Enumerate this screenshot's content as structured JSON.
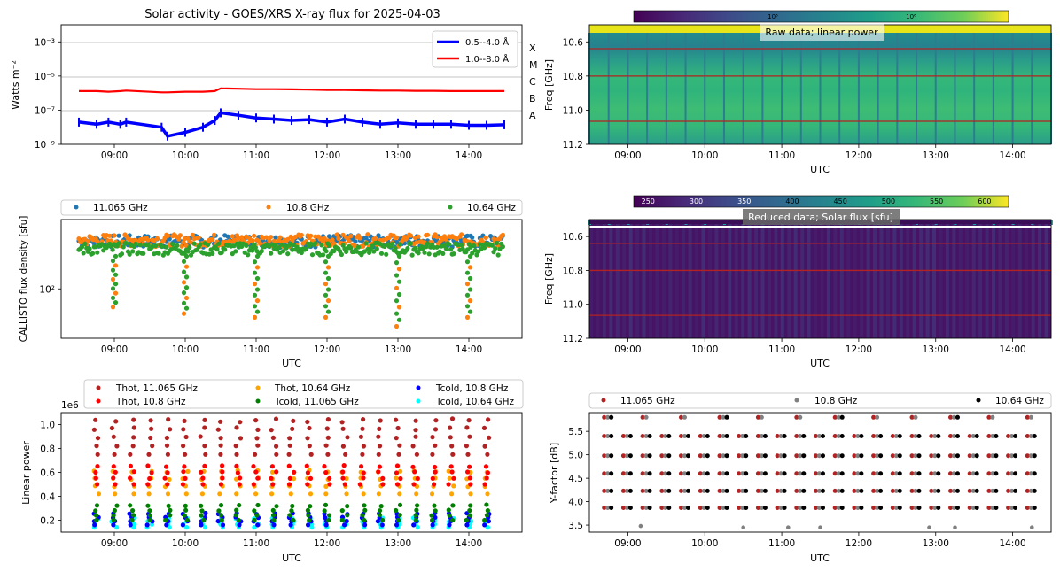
{
  "figure": {
    "title": "Solar activity - GOES/XRS X-ray flux for 2025-04-03"
  },
  "colors": {
    "blue": "#0000ff",
    "red": "#ff0000",
    "c_blue": "#1f77b4",
    "c_orange": "#ff7f0e",
    "c_green": "#2ca02c",
    "brown": "#b22222",
    "thot_red": "#ff0000",
    "orange": "#ffa500",
    "green": "#008000",
    "tcold_blue": "#0000ff",
    "cyan": "#00ffff",
    "gray": "#808080",
    "black": "#000000",
    "hline": "#b22222",
    "grid": "#b0b0b0"
  },
  "time_ticks": [
    "09:00",
    "10:00",
    "11:00",
    "12:00",
    "13:00",
    "14:00"
  ],
  "chart_data": [
    {
      "id": "goes",
      "type": "line",
      "title": "Solar activity - GOES/XRS X-ray flux for 2025-04-03",
      "ylabel": "Watts m⁻²",
      "xlim": [
        "08:15",
        "14:45"
      ],
      "ylog": true,
      "ylim": [
        1e-09,
        0.01
      ],
      "yticks": [
        "10⁻³",
        "10⁻⁵",
        "10⁻⁷",
        "10⁻⁹"
      ],
      "ytick_values": [
        0.001,
        1e-05,
        1e-07,
        1e-09
      ],
      "flare_classes": [
        "X",
        "M",
        "C",
        "B",
        "A"
      ],
      "grid_lines": [
        0.001,
        1e-05,
        1e-07
      ],
      "legend": [
        "0.5--4.0 Å",
        "1.0--8.0 Å"
      ],
      "series": [
        {
          "name": "0.5--4.0 Å",
          "color": "#0000ff",
          "x": [
            "08:30",
            "08:45",
            "08:55",
            "09:05",
            "09:10",
            "09:40",
            "09:45",
            "10:00",
            "10:15",
            "10:25",
            "10:30",
            "10:45",
            "11:00",
            "11:15",
            "11:30",
            "11:45",
            "12:00",
            "12:15",
            "12:30",
            "12:45",
            "13:00",
            "13:15",
            "13:30",
            "13:45",
            "14:00",
            "14:15",
            "14:30"
          ],
          "y": [
            2e-08,
            1.5e-08,
            2e-08,
            1.5e-08,
            2e-08,
            1e-08,
            3e-09,
            5e-09,
            1e-08,
            2.5e-08,
            7e-08,
            5e-08,
            3.5e-08,
            3e-08,
            2.5e-08,
            2.8e-08,
            2e-08,
            3e-08,
            2e-08,
            1.5e-08,
            1.8e-08,
            1.5e-08,
            1.5e-08,
            1.5e-08,
            1.3e-08,
            1.3e-08,
            1.4e-08
          ]
        },
        {
          "name": "1.0--8.0 Å",
          "color": "#ff0000",
          "x": [
            "08:30",
            "08:45",
            "08:55",
            "09:05",
            "09:10",
            "09:40",
            "09:45",
            "10:00",
            "10:15",
            "10:25",
            "10:30",
            "10:45",
            "11:00",
            "11:15",
            "11:30",
            "11:45",
            "12:00",
            "12:15",
            "12:30",
            "12:45",
            "13:00",
            "13:15",
            "13:30",
            "13:45",
            "14:00",
            "14:15",
            "14:30"
          ],
          "y": [
            1.3e-06,
            1.3e-06,
            1.2e-06,
            1.3e-06,
            1.4e-06,
            1.1e-06,
            1.1e-06,
            1.2e-06,
            1.2e-06,
            1.3e-06,
            1.9e-06,
            1.8e-06,
            1.7e-06,
            1.7e-06,
            1.65e-06,
            1.6e-06,
            1.5e-06,
            1.5e-06,
            1.45e-06,
            1.4e-06,
            1.4e-06,
            1.35e-06,
            1.35e-06,
            1.3e-06,
            1.3e-06,
            1.3e-06,
            1.3e-06
          ]
        }
      ]
    },
    {
      "id": "raw",
      "type": "heatmap",
      "title": "Raw data; linear power",
      "ylabel": "Freq [GHz]",
      "xlabel": "UTC",
      "xlim": [
        "08:30",
        "14:30"
      ],
      "yticks": [
        "10.6",
        "10.8",
        "11.0",
        "11.2"
      ],
      "ytick_values": [
        10.6,
        10.8,
        11.0,
        11.2
      ],
      "ylim": [
        10.5,
        11.2
      ],
      "colorbar_ticks": [
        "10⁵",
        "10⁶"
      ],
      "frequencies_marked": [
        10.64,
        10.8,
        11.065
      ],
      "colormap": "viridis"
    },
    {
      "id": "callisto",
      "type": "scatter",
      "ylabel": "CALLISTO flux density [sfu]",
      "xlabel": "UTC",
      "xlim": [
        "08:15",
        "14:45"
      ],
      "ylog": true,
      "ylim": [
        25,
        700
      ],
      "yticks": [
        "10²"
      ],
      "ytick_values": [
        100
      ],
      "legend": [
        "11.065 GHz",
        "10.8 GHz",
        "10.64 GHz"
      ],
      "series": [
        {
          "name": "11.065 GHz",
          "color": "#1f77b4",
          "x": [
            "08:30",
            "14:30"
          ],
          "y": [
            400,
            400
          ]
        },
        {
          "name": "10.8 GHz",
          "color": "#ff7f0e",
          "x": [
            "08:30",
            "14:30"
          ],
          "y": [
            380,
            380
          ]
        },
        {
          "name": "10.64 GHz",
          "color": "#2ca02c",
          "x": [
            "08:30",
            "14:30"
          ],
          "y": [
            300,
            300
          ]
        }
      ],
      "dips": [
        {
          "x": "09:00",
          "y_min": 60
        },
        {
          "x": "10:00",
          "y_min": 50
        },
        {
          "x": "11:00",
          "y_min": 45
        },
        {
          "x": "12:00",
          "y_min": 45
        },
        {
          "x": "13:00",
          "y_min": 35
        },
        {
          "x": "14:00",
          "y_min": 45
        }
      ]
    },
    {
      "id": "reduced",
      "type": "heatmap",
      "title": "Reduced data; Solar flux [sfu]",
      "ylabel": "Freq [GHz]",
      "xlabel": "UTC",
      "xlim": [
        "08:30",
        "14:30"
      ],
      "yticks": [
        "10.6",
        "10.8",
        "11.0",
        "11.2"
      ],
      "ytick_values": [
        10.6,
        10.8,
        11.0,
        11.2
      ],
      "ylim": [
        10.5,
        11.2
      ],
      "colorbar_ticks": [
        "250",
        "300",
        "350",
        "400",
        "450",
        "500",
        "550",
        "600"
      ],
      "colorbar_values": [
        250,
        300,
        350,
        400,
        450,
        500,
        550,
        600
      ],
      "colorbar_range": [
        235,
        625
      ],
      "frequencies_marked": [
        10.64,
        10.8,
        11.065
      ],
      "colormap": "viridis"
    },
    {
      "id": "linpower",
      "type": "scatter",
      "ylabel": "Linear power",
      "xlabel": "UTC",
      "offset_text": "1e6",
      "xlim": [
        "08:15",
        "14:45"
      ],
      "ylim": [
        0.1,
        1.1
      ],
      "yticks": [
        "0.2",
        "0.4",
        "0.6",
        "0.8",
        "1.0"
      ],
      "ytick_values": [
        0.2,
        0.4,
        0.6,
        0.8,
        1.0
      ],
      "legend": [
        "Thot, 11.065 GHz",
        "Thot, 10.8 GHz",
        "Thot, 10.64 GHz",
        "Tcold, 11.065 GHz",
        "Tcold, 10.8 GHz",
        "Tcold, 10.64 GHz"
      ],
      "series": [
        {
          "name": "Thot, 11.065 GHz",
          "color": "#b22222",
          "y_range": [
            0.75,
            1.05
          ]
        },
        {
          "name": "Thot, 10.8 GHz",
          "color": "#ff0000",
          "y_range": [
            0.5,
            0.66
          ]
        },
        {
          "name": "Thot, 10.64 GHz",
          "color": "#ffa500",
          "y_range": [
            0.42,
            0.62
          ]
        },
        {
          "name": "Tcold, 11.065 GHz",
          "color": "#008000",
          "y_range": [
            0.2,
            0.33
          ]
        },
        {
          "name": "Tcold, 10.8 GHz",
          "color": "#0000ff",
          "y_range": [
            0.16,
            0.26
          ]
        },
        {
          "name": "Tcold, 10.64 GHz",
          "color": "#00ffff",
          "y_range": [
            0.14,
            0.22
          ]
        }
      ],
      "calibration_times": [
        "08:45",
        "09:00",
        "09:15",
        "09:30",
        "09:45",
        "10:00",
        "10:15",
        "10:30",
        "10:45",
        "11:00",
        "11:15",
        "11:30",
        "11:45",
        "12:00",
        "12:15",
        "12:30",
        "12:45",
        "13:00",
        "13:15",
        "13:30",
        "13:45",
        "14:00",
        "14:15"
      ]
    },
    {
      "id": "yfactor",
      "type": "scatter",
      "ylabel": "Y-factor [dB]",
      "xlabel": "UTC",
      "xlim": [
        "08:30",
        "14:30"
      ],
      "ylim": [
        3.35,
        5.9
      ],
      "yticks": [
        "3.5",
        "4.0",
        "4.5",
        "5.0",
        "5.5"
      ],
      "ytick_values": [
        3.5,
        4.0,
        4.5,
        5.0,
        5.5
      ],
      "legend": [
        "11.065 GHz",
        "10.8 GHz",
        "10.64 GHz"
      ],
      "series": [
        {
          "name": "11.065 GHz",
          "color": "#b22222"
        },
        {
          "name": "10.8 GHz",
          "color": "#808080"
        },
        {
          "name": "10.64 GHz",
          "color": "#000000"
        }
      ],
      "levels": [
        3.87,
        4.23,
        4.6,
        4.98,
        5.4,
        5.8
      ],
      "calibration_times": [
        "08:45",
        "09:00",
        "09:15",
        "09:30",
        "09:45",
        "10:00",
        "10:15",
        "10:30",
        "10:45",
        "11:00",
        "11:15",
        "11:30",
        "11:45",
        "12:00",
        "12:15",
        "12:30",
        "12:45",
        "13:00",
        "13:15",
        "13:30",
        "13:45",
        "14:00",
        "14:15"
      ]
    }
  ]
}
